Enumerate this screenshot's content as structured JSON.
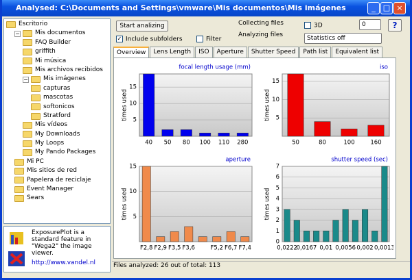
{
  "window": {
    "title": "Analysed: C:\\Documents and Settings\\vmware\\Mis documentos\\Mis imágenes"
  },
  "tree": [
    {
      "label": "Escritorio",
      "children": [
        {
          "label": "Mis documentos",
          "children": [
            {
              "label": "FAQ Builder"
            },
            {
              "label": "griffith"
            },
            {
              "label": "Mi música"
            },
            {
              "label": "Mis archivos recibidos"
            },
            {
              "label": "Mis imágenes",
              "children": [
                {
                  "label": "capturas"
                },
                {
                  "label": "mascotas"
                },
                {
                  "label": "softonicos"
                },
                {
                  "label": "Stratford"
                }
              ]
            },
            {
              "label": "Mis vídeos"
            },
            {
              "label": "My Downloads"
            },
            {
              "label": "My Loops"
            },
            {
              "label": "My Pando Packages"
            }
          ]
        },
        {
          "label": "Mi PC"
        },
        {
          "label": "Mis sitios de red"
        },
        {
          "label": "Papelera de reciclaje"
        },
        {
          "label": "Event Manager"
        },
        {
          "label": "Sears"
        }
      ]
    }
  ],
  "info": {
    "text": "ExposurePlot is a standard feature in \"Wega2\" the image viewer.",
    "link": "http://www.vandel.nl"
  },
  "toolbar": {
    "start_button": "Start analizing",
    "include_subfolders": "Include subfolders",
    "filter": "Filter",
    "collecting": "Collecting files",
    "analyzing": "Analyzing files",
    "three_d": "3D",
    "spin_value": "0",
    "statistics": "Statistics off",
    "help": "?"
  },
  "tabs": [
    "Overview",
    "Lens Length",
    "ISO",
    "Aperture",
    "Shutter Speed",
    "Path list",
    "Equivalent list"
  ],
  "charts": [
    {
      "type": "bar",
      "title": "focal length usage (mm)",
      "ylabel": "times used",
      "color": "#0000ee",
      "categories": [
        "40",
        "50",
        "80",
        "100",
        "110",
        "280"
      ],
      "values": [
        19,
        2,
        2,
        1,
        1,
        1
      ],
      "ylim": [
        0,
        19
      ],
      "yticks": [
        5,
        10,
        15
      ]
    },
    {
      "type": "bar",
      "title": "iso",
      "ylabel": "times used",
      "color": "#ee0000",
      "categories": [
        "50",
        "80",
        "100",
        "160"
      ],
      "values": [
        17,
        4,
        2,
        3
      ],
      "ylim": [
        0,
        17
      ],
      "yticks": [
        5,
        10,
        15
      ]
    },
    {
      "type": "bar",
      "title": "aperture",
      "ylabel": "times used",
      "color": "#f08a4b",
      "categories": [
        "F2,8",
        "F2,9",
        "F3,5",
        "F3,6",
        null,
        "F5,2",
        "F6,7",
        "F7,4"
      ],
      "values": [
        15,
        1,
        2,
        3,
        1,
        1,
        2,
        1
      ],
      "ylim": [
        0,
        15
      ],
      "yticks": [
        5,
        10,
        15
      ]
    },
    {
      "type": "bar",
      "title": "shutter speed (sec)",
      "ylabel": "times used",
      "color": "#1a8a8a",
      "categories": [
        "0,0222",
        null,
        "0,0167",
        null,
        "0,01",
        null,
        "0,0056",
        null,
        "0,002",
        null,
        "0,0013"
      ],
      "values": [
        3,
        2,
        1,
        1,
        1,
        2,
        3,
        2,
        3,
        1,
        7
      ],
      "ylim": [
        0,
        7
      ],
      "yticks": [
        0,
        1,
        2,
        3,
        4,
        5,
        6,
        7
      ]
    }
  ],
  "status": "Files analyzed: 26 out of total: 113"
}
